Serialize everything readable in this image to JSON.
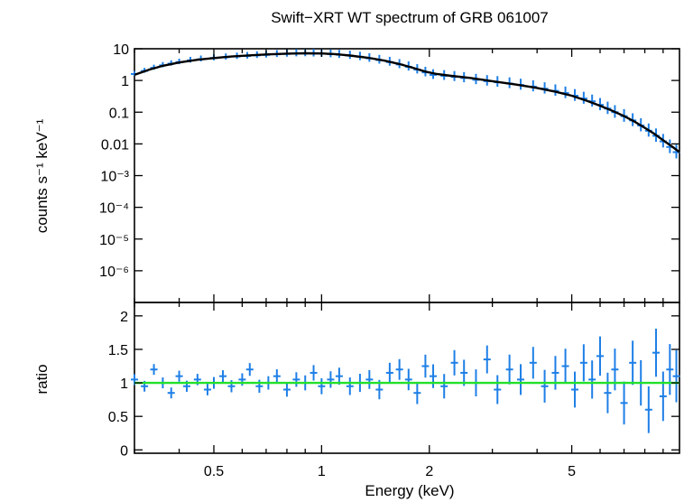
{
  "chart_data": [
    {
      "type": "scatter",
      "panel": "spectrum",
      "title": "Swift−XRT WT spectrum of GRB 061007",
      "xlabel": "",
      "ylabel": "counts s⁻¹ keV⁻¹",
      "xscale": "log",
      "yscale": "log",
      "xlim": [
        0.3,
        10
      ],
      "ylim": [
        1e-07,
        10
      ],
      "y_tick_labels": [
        "10",
        "1",
        "0.1",
        "0.01",
        "10⁻³",
        "10⁻⁴",
        "10⁻⁵",
        "10⁻⁶"
      ],
      "y_tick_values": [
        10,
        1,
        0.1,
        0.01,
        0.001,
        0.0001,
        1e-05,
        1e-06
      ],
      "series": [
        {
          "kind": "data",
          "color": "#1e7fe6",
          "x": [
            0.3,
            0.32,
            0.34,
            0.36,
            0.38,
            0.4,
            0.43,
            0.46,
            0.5,
            0.54,
            0.58,
            0.62,
            0.66,
            0.7,
            0.75,
            0.8,
            0.85,
            0.9,
            0.95,
            1.0,
            1.06,
            1.12,
            1.2,
            1.28,
            1.36,
            1.45,
            1.55,
            1.65,
            1.75,
            1.85,
            1.95,
            2.05,
            2.2,
            2.35,
            2.5,
            2.7,
            2.9,
            3.1,
            3.35,
            3.6,
            3.9,
            4.2,
            4.5,
            4.8,
            5.1,
            5.4,
            5.7,
            6.0,
            6.3,
            6.6,
            7.0,
            7.4,
            7.8,
            8.2,
            8.6,
            9.0,
            9.4,
            9.8
          ],
          "y": [
            1.6,
            2.0,
            2.5,
            3.0,
            3.4,
            3.8,
            4.3,
            4.7,
            5.1,
            5.4,
            5.7,
            5.9,
            6.2,
            6.4,
            6.7,
            6.9,
            7.1,
            7.2,
            7.1,
            7.0,
            6.8,
            6.5,
            6.1,
            5.6,
            5.0,
            4.4,
            3.8,
            3.2,
            2.7,
            2.2,
            1.8,
            1.5,
            1.4,
            1.3,
            1.2,
            1.05,
            0.95,
            0.88,
            0.8,
            0.72,
            0.64,
            0.55,
            0.47,
            0.4,
            0.33,
            0.27,
            0.22,
            0.17,
            0.13,
            0.1,
            0.075,
            0.055,
            0.038,
            0.026,
            0.018,
            0.012,
            0.008,
            0.0055
          ]
        },
        {
          "kind": "model",
          "color": "#000000",
          "x": [
            0.3,
            0.33,
            0.36,
            0.4,
            0.45,
            0.5,
            0.56,
            0.63,
            0.7,
            0.8,
            0.9,
            1.0,
            1.1,
            1.2,
            1.35,
            1.5,
            1.65,
            1.8,
            1.95,
            2.1,
            2.3,
            2.6,
            3.0,
            3.5,
            4.0,
            4.5,
            5.0,
            5.5,
            6.0,
            6.5,
            7.0,
            7.5,
            8.0,
            8.5,
            9.0,
            9.5,
            10.0
          ],
          "y": [
            1.5,
            2.2,
            2.9,
            3.7,
            4.5,
            5.1,
            5.7,
            6.2,
            6.6,
            7.0,
            7.2,
            7.1,
            6.7,
            6.1,
            5.2,
            4.2,
            3.3,
            2.5,
            1.9,
            1.6,
            1.4,
            1.2,
            0.95,
            0.74,
            0.58,
            0.44,
            0.33,
            0.23,
            0.16,
            0.11,
            0.075,
            0.05,
            0.032,
            0.021,
            0.013,
            0.0085,
            0.0055
          ]
        }
      ]
    },
    {
      "type": "scatter",
      "panel": "ratio",
      "title": "",
      "xlabel": "Energy (keV)",
      "ylabel": "ratio",
      "xscale": "log",
      "xlim": [
        0.3,
        10
      ],
      "ylim": [
        -0.05,
        2.2
      ],
      "x_tick_labels": [
        "0.5",
        "1",
        "2",
        "5"
      ],
      "x_tick_values": [
        0.5,
        1,
        2,
        5
      ],
      "y_tick_labels": [
        "0",
        "0.5",
        "1",
        "1.5",
        "2"
      ],
      "y_tick_values": [
        0,
        0.5,
        1,
        1.5,
        2
      ],
      "reference_line": {
        "y": 1,
        "color": "#22e02a"
      },
      "series": [
        {
          "kind": "data",
          "color": "#1e7fe6",
          "x": [
            0.3,
            0.32,
            0.34,
            0.36,
            0.38,
            0.4,
            0.42,
            0.45,
            0.48,
            0.5,
            0.53,
            0.56,
            0.6,
            0.63,
            0.67,
            0.71,
            0.75,
            0.8,
            0.85,
            0.9,
            0.95,
            1.0,
            1.06,
            1.12,
            1.2,
            1.28,
            1.36,
            1.45,
            1.55,
            1.65,
            1.75,
            1.85,
            1.95,
            2.05,
            2.2,
            2.35,
            2.5,
            2.7,
            2.9,
            3.1,
            3.35,
            3.6,
            3.9,
            4.2,
            4.5,
            4.8,
            5.1,
            5.4,
            5.7,
            6.0,
            6.3,
            6.6,
            7.0,
            7.4,
            7.8,
            8.2,
            8.6,
            9.0,
            9.4,
            9.8
          ],
          "y": [
            1.05,
            0.95,
            1.2,
            1.0,
            0.85,
            1.1,
            0.95,
            1.05,
            0.9,
            1.0,
            1.1,
            0.95,
            1.05,
            1.2,
            0.95,
            1.0,
            1.1,
            0.9,
            1.05,
            1.0,
            1.15,
            0.95,
            1.05,
            1.1,
            0.95,
            1.0,
            1.05,
            0.9,
            1.15,
            1.2,
            1.05,
            0.85,
            1.25,
            1.1,
            0.95,
            1.3,
            1.15,
            1.0,
            1.35,
            0.9,
            1.2,
            1.05,
            1.3,
            0.95,
            1.15,
            1.25,
            0.9,
            1.3,
            1.05,
            1.4,
            0.85,
            1.2,
            0.7,
            1.3,
            1.0,
            0.6,
            1.45,
            0.8,
            1.2,
            1.1
          ]
        }
      ]
    }
  ]
}
